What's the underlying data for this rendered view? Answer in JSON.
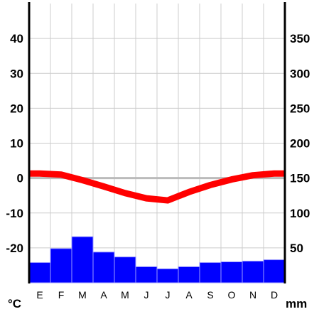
{
  "chart_data": {
    "type": "bar",
    "categories": [
      "E",
      "F",
      "M",
      "A",
      "M",
      "J",
      "J",
      "A",
      "S",
      "O",
      "N",
      "D"
    ],
    "temperature": {
      "unit": "°C",
      "ylim": [
        -30,
        50
      ],
      "ticks": [
        40,
        30,
        20,
        10,
        0,
        -10,
        -20
      ],
      "values": [
        1.3,
        1.0,
        -0.6,
        -2.4,
        -4.3,
        -5.8,
        -6.4,
        -4.0,
        -2.0,
        -0.4,
        0.8,
        1.3
      ],
      "color": "#ff0000"
    },
    "precipitation": {
      "unit": "mm",
      "ylim": [
        0,
        400
      ],
      "ticks": [
        350,
        300,
        250,
        200,
        150,
        100,
        50
      ],
      "values": [
        29,
        49,
        66,
        44,
        37,
        23,
        20,
        23,
        29,
        30,
        31,
        33
      ],
      "color": "#0000ff"
    },
    "zero_line_color": "#bbbbbb",
    "grid": true
  }
}
